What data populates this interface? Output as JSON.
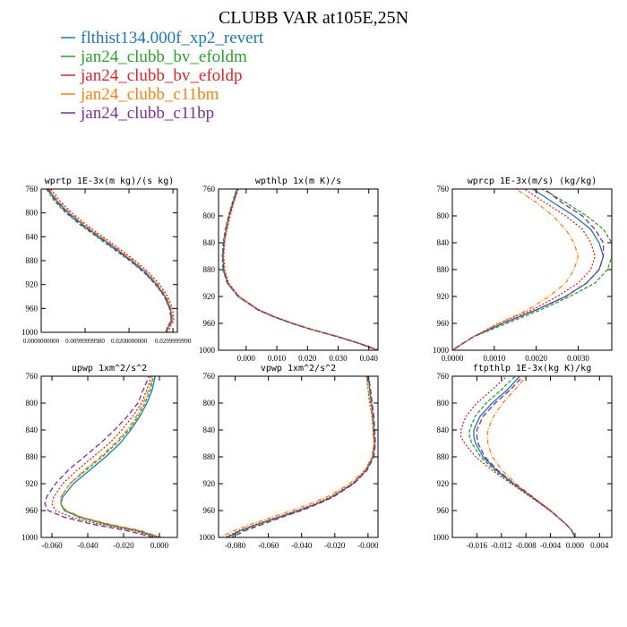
{
  "figure": {
    "title": "CLUBB VAR at105E,25N"
  },
  "legend": [
    {
      "label": "flthist134.000f_xp2_revert",
      "color": "#1f77b4"
    },
    {
      "label": "jan24_clubb_bv_efoldm",
      "color": "#2ca02c"
    },
    {
      "label": "jan24_clubb_bv_efoldp",
      "color": "#d62728"
    },
    {
      "label": "jan24_clubb_c11bm",
      "color": "#ff7f0e"
    },
    {
      "label": "jan24_clubb_c11bp",
      "color": "#7b3294"
    }
  ],
  "chart_data": [
    {
      "type": "line",
      "title": "wprtp  1E-3x(m kg)/(s kg)",
      "xlim": [
        0,
        0.031
      ],
      "ylim": [
        760,
        1000
      ],
      "yinverted": true,
      "xticks": [
        0.0,
        0.01,
        0.02,
        0.03
      ],
      "xticklabels": [
        "0.0000000000",
        "0.00999999980",
        "0.0200000000",
        "0.0299999990"
      ],
      "yticks": [
        760,
        800,
        840,
        880,
        920,
        960,
        1000
      ],
      "y": [
        760,
        780,
        800,
        820,
        840,
        860,
        880,
        900,
        920,
        940,
        960,
        980,
        990,
        1000
      ],
      "series": [
        {
          "name": "flthist134.000f_xp2_revert",
          "values": [
            0.0016,
            0.0035,
            0.0062,
            0.0095,
            0.0132,
            0.017,
            0.0206,
            0.0238,
            0.0263,
            0.0282,
            0.0294,
            0.0298,
            0.029,
            0.0285
          ]
        },
        {
          "name": "jan24_clubb_bv_efoldm",
          "values": [
            0.0012,
            0.003,
            0.0056,
            0.0089,
            0.0126,
            0.0164,
            0.0201,
            0.0234,
            0.026,
            0.028,
            0.0292,
            0.0296,
            0.0288,
            0.0283
          ]
        },
        {
          "name": "jan24_clubb_bv_efoldp",
          "values": [
            0.0022,
            0.0042,
            0.007,
            0.0103,
            0.014,
            0.0178,
            0.0214,
            0.0245,
            0.027,
            0.0288,
            0.0299,
            0.0302,
            0.0294,
            0.0289
          ]
        },
        {
          "name": "jan24_clubb_c11bm",
          "values": [
            0.0018,
            0.0038,
            0.0066,
            0.0099,
            0.0136,
            0.0174,
            0.021,
            0.0241,
            0.0266,
            0.0285,
            0.0296,
            0.03,
            0.0292,
            0.0287
          ]
        },
        {
          "name": "jan24_clubb_c11bp",
          "values": [
            0.0014,
            0.0033,
            0.0059,
            0.0092,
            0.0129,
            0.0167,
            0.0204,
            0.0236,
            0.0262,
            0.0281,
            0.0293,
            0.0297,
            0.0289,
            0.0284
          ]
        }
      ]
    },
    {
      "type": "line",
      "title": "wpthlp  1x(m K)/s",
      "xlim": [
        -0.009,
        0.043
      ],
      "ylim": [
        760,
        1000
      ],
      "yinverted": true,
      "xticks": [
        0.0,
        0.01,
        0.02,
        0.03,
        0.04
      ],
      "xticklabels": [
        "0.000",
        "0.010",
        "0.020",
        "0.030",
        "0.040"
      ],
      "yticks": [
        760,
        800,
        840,
        880,
        920,
        960,
        1000
      ],
      "y": [
        755,
        780,
        800,
        820,
        840,
        860,
        880,
        900,
        920,
        940,
        950,
        960,
        970,
        980,
        990,
        1000
      ],
      "series": [
        {
          "name": "flthist134.000f_xp2_revert",
          "values": [
            -0.0025,
            -0.0042,
            -0.0055,
            -0.0065,
            -0.0072,
            -0.0075,
            -0.0073,
            -0.006,
            -0.0025,
            0.004,
            0.009,
            0.015,
            0.022,
            0.03,
            0.037,
            0.043
          ]
        },
        {
          "name": "jan24_clubb_bv_efoldm",
          "values": [
            -0.0028,
            -0.0045,
            -0.0058,
            -0.0068,
            -0.0075,
            -0.0078,
            -0.0076,
            -0.0062,
            -0.0027,
            0.0038,
            0.0088,
            0.0148,
            0.0218,
            0.0298,
            0.0368,
            0.0428
          ]
        },
        {
          "name": "jan24_clubb_bv_efoldp",
          "values": [
            -0.0022,
            -0.004,
            -0.0052,
            -0.0062,
            -0.007,
            -0.0073,
            -0.007,
            -0.0057,
            -0.0022,
            0.0043,
            0.0093,
            0.0153,
            0.0223,
            0.0303,
            0.0373,
            0.0433
          ]
        },
        {
          "name": "jan24_clubb_c11bm",
          "values": [
            -0.0024,
            -0.0041,
            -0.0054,
            -0.0064,
            -0.0071,
            -0.0074,
            -0.0072,
            -0.0059,
            -0.0024,
            0.0041,
            0.0091,
            0.0151,
            0.0221,
            0.0301,
            0.0371,
            0.0431
          ]
        },
        {
          "name": "jan24_clubb_c11bp",
          "values": [
            -0.0026,
            -0.0043,
            -0.0056,
            -0.0066,
            -0.0073,
            -0.0076,
            -0.0074,
            -0.0061,
            -0.0026,
            0.0039,
            0.0089,
            0.0149,
            0.0219,
            0.0299,
            0.0369,
            0.0429
          ]
        }
      ]
    },
    {
      "type": "line",
      "title": "wprcp  1E-3x(m/s) (kg/kg)",
      "xlim": [
        0.0,
        0.0038
      ],
      "ylim": [
        760,
        1000
      ],
      "yinverted": true,
      "xticks": [
        0.0,
        0.001,
        0.002,
        0.003
      ],
      "xticklabels": [
        "0.0000",
        "0.0010",
        "0.0020",
        "0.0030"
      ],
      "yticks": [
        760,
        800,
        840,
        880,
        920,
        960,
        1000
      ],
      "y": [
        755,
        780,
        800,
        820,
        840,
        860,
        880,
        900,
        920,
        940,
        960,
        980,
        1000
      ],
      "series": [
        {
          "name": "flthist134.000f_xp2_revert",
          "values": [
            0.0018,
            0.0024,
            0.0029,
            0.0033,
            0.0035,
            0.0036,
            0.0035,
            0.0032,
            0.0027,
            0.002,
            0.0012,
            0.0005,
            0.0
          ]
        },
        {
          "name": "jan24_clubb_bv_efoldm",
          "values": [
            0.002,
            0.0027,
            0.0032,
            0.0036,
            0.0038,
            0.0038,
            0.0037,
            0.0034,
            0.0028,
            0.0021,
            0.0013,
            0.0005,
            0.0
          ]
        },
        {
          "name": "jan24_clubb_bv_efoldp",
          "values": [
            0.0016,
            0.0022,
            0.0027,
            0.0031,
            0.0033,
            0.0034,
            0.0033,
            0.003,
            0.0025,
            0.0019,
            0.0011,
            0.0005,
            0.0
          ]
        },
        {
          "name": "jan24_clubb_c11bm",
          "values": [
            0.0014,
            0.002,
            0.0024,
            0.0027,
            0.0029,
            0.003,
            0.0029,
            0.0027,
            0.0023,
            0.0018,
            0.0011,
            0.0005,
            0.0
          ]
        },
        {
          "name": "jan24_clubb_c11bp",
          "values": [
            0.0021,
            0.0026,
            0.0031,
            0.0034,
            0.0036,
            0.0036,
            0.0035,
            0.0032,
            0.0027,
            0.002,
            0.0012,
            0.0005,
            0.0
          ]
        }
      ]
    },
    {
      "type": "line",
      "title": "upwp  1xm^2/s^2",
      "xlim": [
        -0.066,
        0.01
      ],
      "ylim": [
        760,
        1000
      ],
      "yinverted": true,
      "xticks": [
        -0.06,
        -0.04,
        -0.02,
        0.0
      ],
      "xticklabels": [
        "-0.060",
        "-0.040",
        "-0.020",
        "0.000"
      ],
      "yticks": [
        760,
        800,
        840,
        880,
        920,
        960,
        1000
      ],
      "y": [
        755,
        780,
        800,
        820,
        840,
        860,
        880,
        900,
        920,
        940,
        950,
        960,
        970,
        980,
        990,
        1000
      ],
      "series": [
        {
          "name": "flthist134.000f_xp2_revert",
          "values": [
            -0.002,
            -0.004,
            -0.007,
            -0.011,
            -0.016,
            -0.022,
            -0.03,
            -0.039,
            -0.048,
            -0.054,
            -0.055,
            -0.053,
            -0.044,
            -0.03,
            -0.012,
            0.0
          ]
        },
        {
          "name": "jan24_clubb_bv_efoldm",
          "values": [
            -0.003,
            -0.005,
            -0.008,
            -0.012,
            -0.017,
            -0.024,
            -0.032,
            -0.041,
            -0.05,
            -0.055,
            -0.055,
            -0.053,
            -0.045,
            -0.031,
            -0.013,
            0.0
          ]
        },
        {
          "name": "jan24_clubb_bv_efoldp",
          "values": [
            -0.004,
            -0.007,
            -0.01,
            -0.015,
            -0.021,
            -0.028,
            -0.037,
            -0.046,
            -0.054,
            -0.059,
            -0.06,
            -0.058,
            -0.049,
            -0.034,
            -0.014,
            -0.002
          ]
        },
        {
          "name": "jan24_clubb_c11bm",
          "values": [
            -0.003,
            -0.006,
            -0.009,
            -0.013,
            -0.018,
            -0.025,
            -0.033,
            -0.042,
            -0.05,
            -0.055,
            -0.055,
            -0.052,
            -0.043,
            -0.028,
            -0.01,
            0.001
          ]
        },
        {
          "name": "jan24_clubb_c11bp",
          "values": [
            -0.005,
            -0.009,
            -0.012,
            -0.018,
            -0.025,
            -0.033,
            -0.042,
            -0.051,
            -0.058,
            -0.063,
            -0.064,
            -0.062,
            -0.053,
            -0.038,
            -0.018,
            -0.003
          ]
        }
      ]
    },
    {
      "type": "line",
      "title": "vpwp  1xm^2/s^2",
      "xlim": [
        -0.09,
        0.006
      ],
      "ylim": [
        760,
        1000
      ],
      "yinverted": true,
      "xticks": [
        -0.08,
        -0.06,
        -0.04,
        -0.02,
        0.0
      ],
      "xticklabels": [
        "-0.080",
        "-0.060",
        "-0.040",
        "-0.020",
        "-0.000"
      ],
      "yticks": [
        760,
        800,
        840,
        880,
        920,
        960,
        1000
      ],
      "y": [
        755,
        780,
        800,
        820,
        840,
        860,
        880,
        900,
        920,
        940,
        950,
        960,
        970,
        980,
        990,
        1000
      ],
      "series": [
        {
          "name": "flthist134.000f_xp2_revert",
          "values": [
            0.0,
            0.001,
            0.002,
            0.003,
            0.0035,
            0.004,
            0.003,
            -0.001,
            -0.009,
            -0.022,
            -0.031,
            -0.042,
            -0.054,
            -0.066,
            -0.077,
            -0.085
          ]
        },
        {
          "name": "jan24_clubb_bv_efoldm",
          "values": [
            0.0,
            0.001,
            0.002,
            0.003,
            0.0035,
            0.004,
            0.003,
            -0.001,
            -0.009,
            -0.022,
            -0.031,
            -0.041,
            -0.053,
            -0.065,
            -0.076,
            -0.084
          ]
        },
        {
          "name": "jan24_clubb_bv_efoldp",
          "values": [
            -0.001,
            0.0,
            0.001,
            0.0025,
            0.003,
            0.0035,
            0.0025,
            -0.0015,
            -0.0095,
            -0.023,
            -0.032,
            -0.043,
            -0.055,
            -0.067,
            -0.078,
            -0.086
          ]
        },
        {
          "name": "jan24_clubb_c11bm",
          "values": [
            -0.001,
            0.0,
            0.0015,
            0.0025,
            0.003,
            0.0035,
            0.0025,
            -0.002,
            -0.011,
            -0.025,
            -0.035,
            -0.046,
            -0.058,
            -0.07,
            -0.081,
            -0.089
          ]
        },
        {
          "name": "jan24_clubb_c11bp",
          "values": [
            0.0,
            0.0015,
            0.0025,
            0.0035,
            0.004,
            0.0045,
            0.0035,
            -0.0005,
            -0.0085,
            -0.021,
            -0.03,
            -0.04,
            -0.052,
            -0.063,
            -0.074,
            -0.082
          ]
        }
      ]
    },
    {
      "type": "line",
      "title": "ftpthlp  1E-3x(kg K)/kg",
      "xlim": [
        -0.02,
        0.006
      ],
      "ylim": [
        760,
        1000
      ],
      "yinverted": true,
      "xticks": [
        -0.016,
        -0.012,
        -0.008,
        -0.004,
        0.0,
        0.004
      ],
      "xticklabels": [
        "-0.016",
        "-0.012",
        "-0.008",
        "-0.004",
        "0.000",
        "0.004"
      ],
      "yticks": [
        760,
        800,
        840,
        880,
        920,
        960,
        1000
      ],
      "y": [
        755,
        780,
        800,
        820,
        840,
        850,
        860,
        880,
        900,
        920,
        940,
        960,
        980,
        990,
        1000
      ],
      "series": [
        {
          "name": "flthist134.000f_xp2_revert",
          "values": [
            -0.0085,
            -0.011,
            -0.0135,
            -0.0155,
            -0.0165,
            -0.0165,
            -0.0162,
            -0.015,
            -0.0128,
            -0.01,
            -0.007,
            -0.004,
            -0.0015,
            -0.0005,
            0.0
          ]
        },
        {
          "name": "jan24_clubb_bv_efoldm",
          "values": [
            -0.0092,
            -0.012,
            -0.0145,
            -0.0163,
            -0.0172,
            -0.0172,
            -0.0168,
            -0.0154,
            -0.0131,
            -0.0102,
            -0.0071,
            -0.0041,
            -0.0015,
            -0.0005,
            0.0
          ]
        },
        {
          "name": "jan24_clubb_bv_efoldp",
          "values": [
            -0.0105,
            -0.0135,
            -0.016,
            -0.0178,
            -0.0186,
            -0.0186,
            -0.018,
            -0.0162,
            -0.0135,
            -0.0104,
            -0.0072,
            -0.0041,
            -0.0015,
            -0.0005,
            0.0
          ]
        },
        {
          "name": "jan24_clubb_c11bm",
          "values": [
            -0.0075,
            -0.0098,
            -0.0118,
            -0.0133,
            -0.0142,
            -0.0143,
            -0.0142,
            -0.0135,
            -0.0119,
            -0.0096,
            -0.0068,
            -0.0039,
            -0.0015,
            -0.0005,
            0.0
          ]
        },
        {
          "name": "jan24_clubb_c11bp",
          "values": [
            -0.008,
            -0.0105,
            -0.013,
            -0.015,
            -0.016,
            -0.016,
            -0.0158,
            -0.0147,
            -0.0126,
            -0.0099,
            -0.0069,
            -0.004,
            -0.0015,
            -0.0005,
            0.0
          ]
        }
      ]
    }
  ]
}
